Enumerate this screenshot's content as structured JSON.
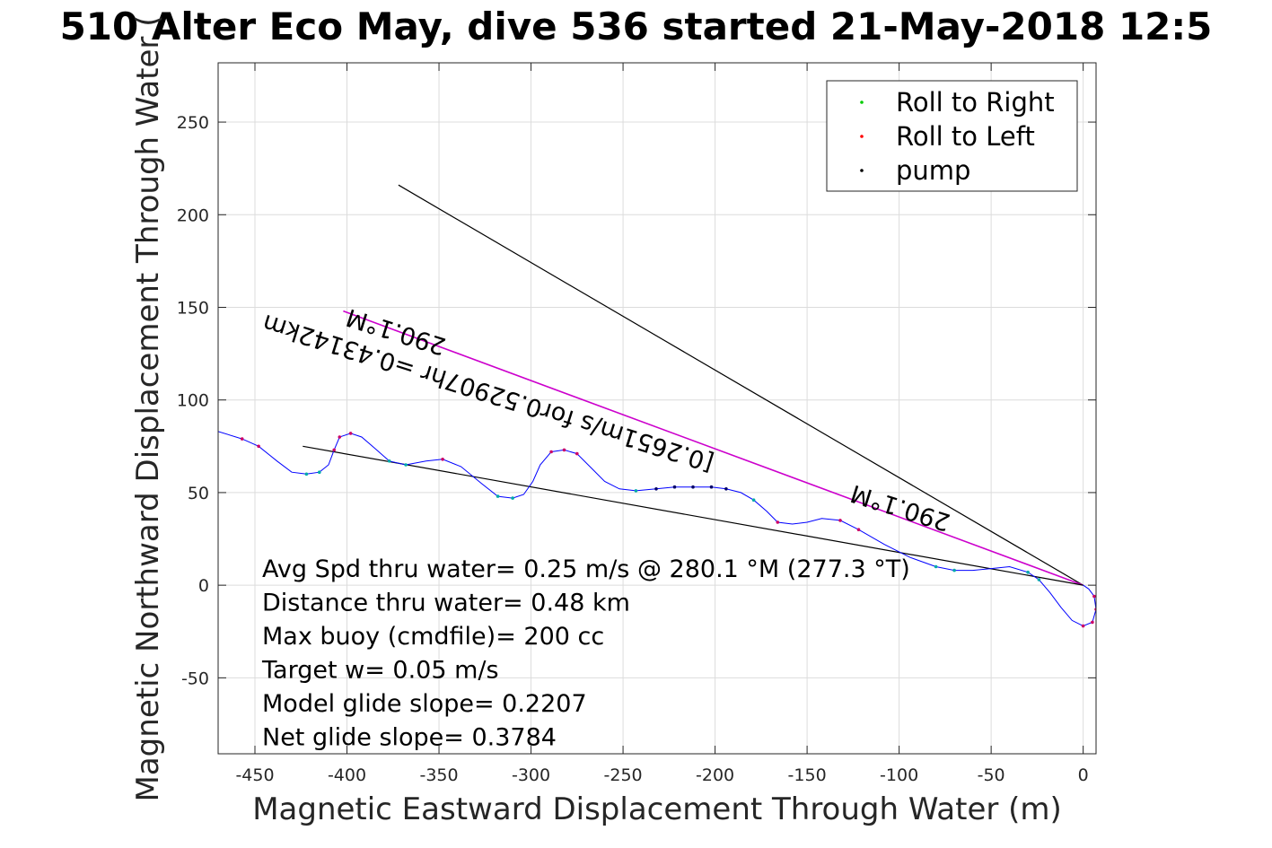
{
  "chart_data": {
    "type": "line",
    "title": "510 Alter Eco May, dive 536 started 21-May-2018 12:5",
    "xlabel": "Magnetic Eastward Displacement Through Water (m)",
    "ylabel": "Magnetic Northward Displacement Through Water (",
    "xlim": [
      -470,
      7
    ],
    "ylim": [
      -91,
      282
    ],
    "xticks": [
      -450,
      -400,
      -350,
      -300,
      -250,
      -200,
      -150,
      -100,
      -50,
      0
    ],
    "yticks": [
      -50,
      0,
      50,
      100,
      150,
      200,
      250
    ],
    "grid": true,
    "legend": {
      "position": "top-right",
      "entries": [
        {
          "label": "Roll to Right",
          "color": "#00cc00"
        },
        {
          "label": "Roll to Left",
          "color": "#ff0000"
        },
        {
          "label": "pump",
          "color": "#000000"
        }
      ]
    },
    "track": {
      "color": "#0000ff",
      "points": [
        [
          -470,
          83
        ],
        [
          -457,
          79
        ],
        [
          -448,
          75
        ],
        [
          -438,
          67
        ],
        [
          -430,
          61
        ],
        [
          -422,
          60
        ],
        [
          -415,
          61
        ],
        [
          -410,
          65
        ],
        [
          -407,
          73
        ],
        [
          -404,
          80
        ],
        [
          -398,
          82
        ],
        [
          -392,
          80
        ],
        [
          -385,
          74
        ],
        [
          -377,
          67
        ],
        [
          -368,
          65
        ],
        [
          -357,
          67
        ],
        [
          -348,
          68
        ],
        [
          -338,
          64
        ],
        [
          -327,
          55
        ],
        [
          -318,
          48
        ],
        [
          -310,
          47
        ],
        [
          -304,
          49
        ],
        [
          -299,
          56
        ],
        [
          -295,
          65
        ],
        [
          -289,
          72
        ],
        [
          -282,
          73
        ],
        [
          -275,
          71
        ],
        [
          -268,
          64
        ],
        [
          -260,
          56
        ],
        [
          -252,
          52
        ],
        [
          -243,
          51
        ],
        [
          -232,
          52
        ],
        [
          -222,
          53
        ],
        [
          -212,
          53
        ],
        [
          -202,
          53
        ],
        [
          -194,
          52
        ],
        [
          -186,
          50
        ],
        [
          -179,
          46
        ],
        [
          -172,
          40
        ],
        [
          -166,
          34
        ],
        [
          -158,
          33
        ],
        [
          -150,
          34
        ],
        [
          -142,
          36
        ],
        [
          -132,
          35
        ],
        [
          -122,
          30
        ],
        [
          -108,
          22
        ],
        [
          -94,
          15
        ],
        [
          -80,
          10
        ],
        [
          -70,
          8
        ],
        [
          -60,
          8
        ],
        [
          -50,
          9
        ],
        [
          -40,
          10
        ],
        [
          -30,
          7
        ],
        [
          -24,
          3
        ],
        [
          -18,
          -4
        ],
        [
          -12,
          -12
        ],
        [
          -6,
          -19
        ],
        [
          0,
          -22
        ],
        [
          5,
          -20
        ],
        [
          7,
          -13
        ],
        [
          6,
          -6
        ],
        [
          3,
          -2
        ],
        [
          0,
          0
        ]
      ]
    },
    "lines": [
      {
        "name": "",
        "color": "#000000",
        "points": [
          [
            -372,
            216
          ],
          [
            0,
            0
          ]
        ]
      },
      {
        "name": "",
        "color": "#cc00cc",
        "points": [
          [
            -402,
            148
          ],
          [
            0,
            0
          ]
        ]
      },
      {
        "name": "",
        "color": "#000000",
        "points": [
          [
            -424,
            75
          ],
          [
            0,
            0
          ]
        ]
      }
    ],
    "line_labels": [
      {
        "text": "290.1°M",
        "x": -372,
        "y": 141,
        "angle": 197.5
      },
      {
        "text": "[0.2651m/s for0.52907hr =0.43142km",
        "x": -322,
        "y": 108,
        "angle": 197.5
      },
      {
        "text": "290.1°M",
        "x": -98,
        "y": 46,
        "angle": 197.5
      }
    ],
    "annotations": [
      "Avg Spd thru water=  0.25 m/s @ 280.1 °M (277.3 °T)",
      "Distance thru water=  0.48 km",
      "Max buoy (cmdfile)= 200 cc",
      "Target w= 0.05 m/s",
      "Model glide slope= 0.2207",
      "Net glide slope= 0.3784"
    ]
  }
}
